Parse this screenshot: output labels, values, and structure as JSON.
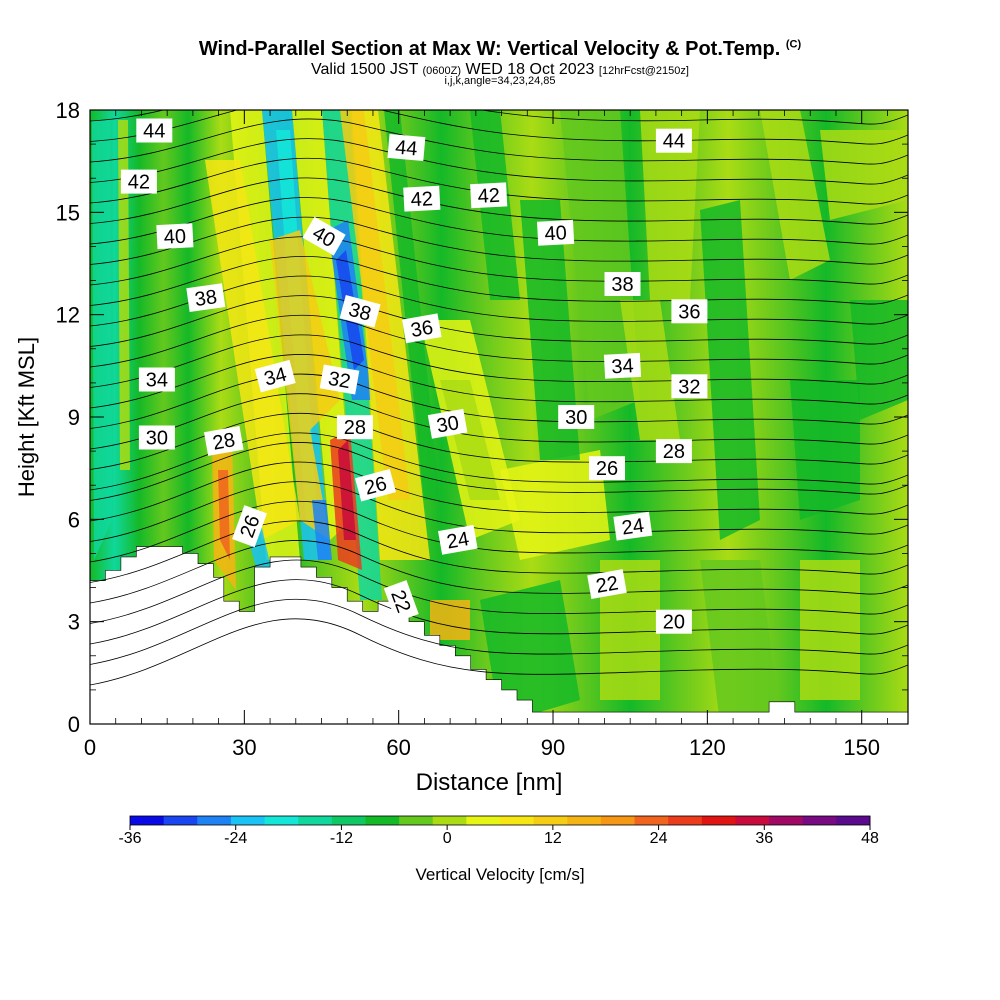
{
  "header": {
    "title": "Wind-Parallel Section at Max W: Vertical Velocity & Pot.Temp.",
    "title_mark": "(C)",
    "valid_prefix": "Valid 1500 JST",
    "valid_z": "(0600Z)",
    "valid_date": "WED 18 Oct 2023",
    "fcst": "[12hrFcst@2150z]",
    "indices": "i,j,k,angle=34,23,24,85"
  },
  "chart_data": {
    "type": "heatmap",
    "xlabel": "Distance [nm]",
    "ylabel": "Height [Kft MSL]",
    "xlim": [
      0,
      159
    ],
    "ylim": [
      0,
      18
    ],
    "x_ticks": [
      "0",
      "30",
      "60",
      "90",
      "120",
      "150"
    ],
    "y_ticks": [
      "0",
      "3",
      "6",
      "9",
      "12",
      "15",
      "18"
    ],
    "colorbar": {
      "label": "Vertical Velocity [cm/s]",
      "range": [
        -36,
        48
      ],
      "ticks": [
        "-36",
        "-24",
        "-12",
        "0",
        "12",
        "24",
        "36",
        "48"
      ],
      "colors": [
        "#0a0ae6",
        "#1946f0",
        "#1e82f5",
        "#19c3f5",
        "#14e6d7",
        "#10d79b",
        "#0fc864",
        "#14b928",
        "#64c81e",
        "#aadc14",
        "#e6f514",
        "#f5e614",
        "#f5cd14",
        "#f5b414",
        "#f59614",
        "#f0641e",
        "#eb3c1e",
        "#e11414",
        "#c80a3c",
        "#a00a64",
        "#780a82",
        "#5a0a8c"
      ]
    },
    "contour_field": "Potential Temperature",
    "contour_labels": [
      {
        "text": "44",
        "x": 12.5,
        "y": 17.4,
        "a": 0
      },
      {
        "text": "44",
        "x": 61.5,
        "y": 16.9,
        "a": 5
      },
      {
        "text": "44",
        "x": 113.5,
        "y": 17.1,
        "a": 0
      },
      {
        "text": "42",
        "x": 9.5,
        "y": 15.9,
        "a": 0
      },
      {
        "text": "42",
        "x": 64.5,
        "y": 15.4,
        "a": -3
      },
      {
        "text": "42",
        "x": 77.5,
        "y": 15.5,
        "a": -3
      },
      {
        "text": "40",
        "x": 16.5,
        "y": 14.3,
        "a": -3
      },
      {
        "text": "40",
        "x": 45.5,
        "y": 14.3,
        "a": 30
      },
      {
        "text": "40",
        "x": 90.5,
        "y": 14.4,
        "a": -3
      },
      {
        "text": "38",
        "x": 22.5,
        "y": 12.5,
        "a": -8
      },
      {
        "text": "38",
        "x": 52.5,
        "y": 12.1,
        "a": 15
      },
      {
        "text": "38",
        "x": 103.5,
        "y": 12.9,
        "a": 0
      },
      {
        "text": "36",
        "x": 64.5,
        "y": 11.6,
        "a": -10
      },
      {
        "text": "36",
        "x": 116.5,
        "y": 12.1,
        "a": 0
      },
      {
        "text": "34",
        "x": 13.0,
        "y": 10.1,
        "a": 0
      },
      {
        "text": "34",
        "x": 36.0,
        "y": 10.2,
        "a": -15
      },
      {
        "text": "34",
        "x": 103.5,
        "y": 10.5,
        "a": -3
      },
      {
        "text": "32",
        "x": 48.5,
        "y": 10.1,
        "a": 10
      },
      {
        "text": "32",
        "x": 116.5,
        "y": 9.9,
        "a": 0
      },
      {
        "text": "30",
        "x": 13.0,
        "y": 8.4,
        "a": 0
      },
      {
        "text": "30",
        "x": 69.5,
        "y": 8.8,
        "a": -10
      },
      {
        "text": "30",
        "x": 94.5,
        "y": 9.0,
        "a": 0
      },
      {
        "text": "28",
        "x": 26.0,
        "y": 8.3,
        "a": -10
      },
      {
        "text": "28",
        "x": 51.5,
        "y": 8.7,
        "a": 0
      },
      {
        "text": "28",
        "x": 113.5,
        "y": 8.0,
        "a": 0
      },
      {
        "text": "26",
        "x": 31.0,
        "y": 5.8,
        "a": -70
      },
      {
        "text": "26",
        "x": 55.5,
        "y": 7.0,
        "a": -15
      },
      {
        "text": "26",
        "x": 100.5,
        "y": 7.5,
        "a": 0
      },
      {
        "text": "24",
        "x": 71.5,
        "y": 5.4,
        "a": -10
      },
      {
        "text": "24",
        "x": 105.5,
        "y": 5.8,
        "a": -8
      },
      {
        "text": "22",
        "x": 60.5,
        "y": 3.6,
        "a": 70
      },
      {
        "text": "22",
        "x": 100.5,
        "y": 4.1,
        "a": -10
      },
      {
        "text": "20",
        "x": 113.5,
        "y": 3.0,
        "a": 0
      }
    ]
  }
}
